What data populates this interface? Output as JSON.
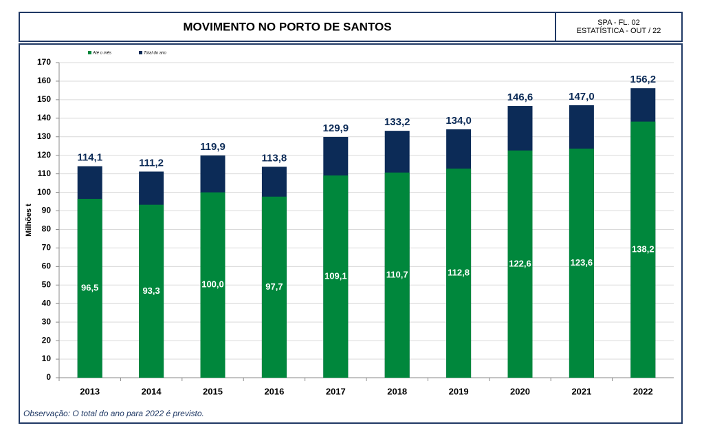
{
  "chart_data": {
    "type": "bar",
    "barmode": "overlay",
    "title": "MOVIMENTO NO PORTO DE SANTOS",
    "header_right": [
      "SPA - FL. 02",
      "ESTATÍSTICA - OUT  /  22"
    ],
    "ylabel": "Milhões  t",
    "note": "Observação: O total do ano para 2022 é previsto.",
    "categories": [
      "2013",
      "2014",
      "2015",
      "2016",
      "2017",
      "2018",
      "2019",
      "2020",
      "2021",
      "2022"
    ],
    "series": [
      {
        "name": "Até o mês",
        "color": "#00873c",
        "values": [
          96.5,
          93.3,
          100.0,
          97.7,
          109.1,
          110.7,
          112.8,
          122.6,
          123.6,
          138.2
        ],
        "value_labels": [
          "96,5",
          "93,3",
          "100,0",
          "97,7",
          "109,1",
          "110,7",
          "112,8",
          "122,6",
          "123,6",
          "138,2"
        ]
      },
      {
        "name": "Total do ano",
        "color": "#0c2b57",
        "values": [
          114.1,
          111.2,
          119.9,
          113.8,
          129.9,
          133.2,
          134.0,
          146.6,
          147.0,
          156.2
        ],
        "value_labels": [
          "114,1",
          "111,2",
          "119,9",
          "113,8",
          "129,9",
          "133,2",
          "134,0",
          "146,6",
          "147,0",
          "156,2"
        ]
      }
    ],
    "ylim": [
      0,
      170
    ],
    "yticks": [
      0,
      10,
      20,
      30,
      40,
      50,
      60,
      70,
      80,
      90,
      100,
      110,
      120,
      130,
      140,
      150,
      160,
      170
    ],
    "grid": true,
    "legend": "top-left"
  }
}
